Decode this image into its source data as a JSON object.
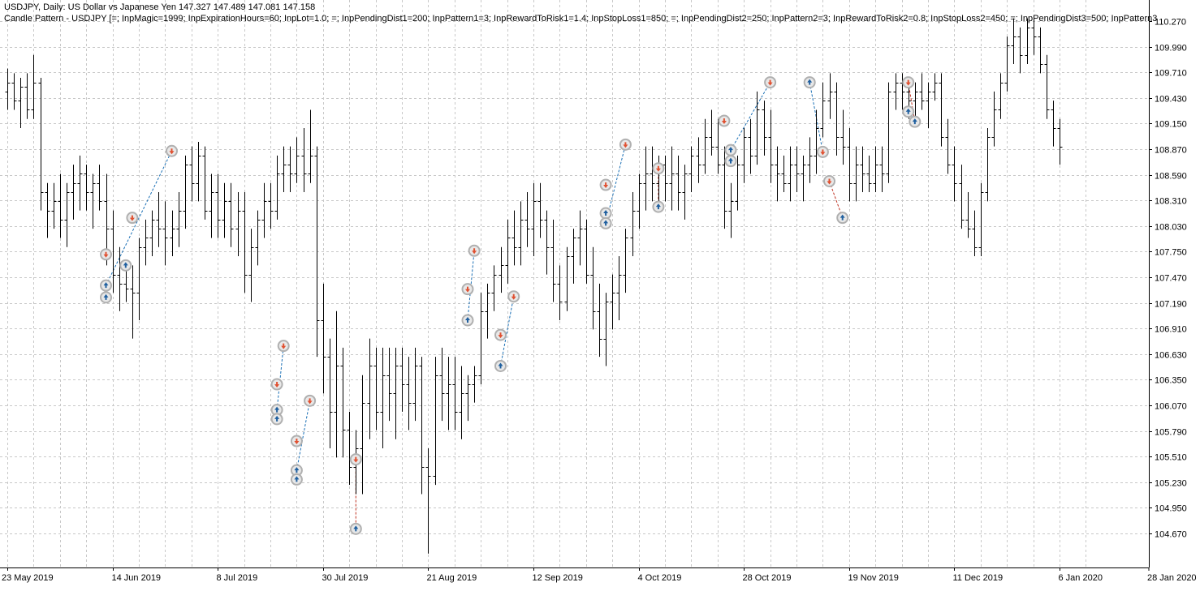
{
  "header": {
    "line1": "USDJPY, Daily:  US Dollar vs Japanese Yen  147.327 147.489 147.081 147.158",
    "line2": "Candle Pattern - USDJPY [=; InpMagic=1999; InpExpirationHours=60; InpLot=1.0; =; InpPendingDist1=200; InpPattern1=3; InpRewardToRisk1=1.4; InpStopLoss1=850; =; InpPendingDist2=250; InpPattern2=3; InpRewardToRisk2=0.8; InpStopLoss2=450; =; InpPendingDist3=500; InpPattern3"
  },
  "colors": {
    "background": "#ffffff",
    "bars": "#000000",
    "grid": "#c8c8c8",
    "buy_marker": "#1f5f9f",
    "sell_marker": "#e05030",
    "marker_ring": "#b0b0b0",
    "trade_line_buy": "#1a6fb5",
    "trade_line_sell": "#c03020"
  },
  "chart_data": {
    "type": "ohlc",
    "symbol": "USDJPY",
    "timeframe": "Daily",
    "y_ticks": [
      "110.270",
      "109.990",
      "109.710",
      "109.430",
      "109.150",
      "108.870",
      "108.590",
      "108.310",
      "108.030",
      "107.750",
      "107.470",
      "107.190",
      "106.910",
      "106.630",
      "106.350",
      "106.070",
      "105.790",
      "105.510",
      "105.230",
      "104.950",
      "104.670"
    ],
    "ylim": [
      104.4,
      110.45
    ],
    "x_ticks": [
      "23 May 2019",
      "14 Jun 2019",
      "8 Jul 2019",
      "30 Jul 2019",
      "21 Aug 2019",
      "12 Sep 2019",
      "4 Oct 2019",
      "28 Oct 2019",
      "19 Nov 2019",
      "11 Dec 2019",
      "6 Jan 2020",
      "28 Jan 2020"
    ],
    "x_tick_bar_index": [
      0,
      16,
      32,
      48,
      64,
      80,
      96,
      112,
      128,
      144,
      160,
      176
    ],
    "grid": true,
    "ohlc": [
      [
        109.5,
        109.75,
        109.3,
        109.6
      ],
      [
        109.6,
        109.7,
        109.3,
        109.4
      ],
      [
        109.4,
        109.65,
        109.1,
        109.55
      ],
      [
        109.55,
        109.7,
        109.2,
        109.3
      ],
      [
        109.3,
        109.9,
        109.2,
        109.6
      ],
      [
        109.6,
        109.65,
        108.2,
        108.4
      ],
      [
        108.4,
        108.5,
        107.9,
        108.2
      ],
      [
        108.2,
        108.5,
        108.0,
        108.3
      ],
      [
        108.3,
        108.6,
        107.9,
        108.1
      ],
      [
        108.1,
        108.5,
        107.8,
        108.4
      ],
      [
        108.4,
        108.7,
        108.1,
        108.5
      ],
      [
        108.5,
        108.8,
        108.2,
        108.6
      ],
      [
        108.6,
        108.7,
        108.2,
        108.4
      ],
      [
        108.4,
        108.6,
        108.0,
        108.5
      ],
      [
        108.5,
        108.7,
        108.2,
        108.3
      ],
      [
        108.3,
        108.6,
        107.6,
        108.0
      ],
      [
        108.0,
        108.2,
        107.3,
        107.5
      ],
      [
        107.5,
        107.8,
        107.1,
        107.4
      ],
      [
        107.4,
        107.6,
        107.2,
        107.35
      ],
      [
        107.35,
        107.6,
        106.8,
        107.3
      ],
      [
        107.3,
        107.9,
        107.0,
        107.8
      ],
      [
        107.8,
        108.1,
        107.6,
        107.9
      ],
      [
        107.9,
        108.2,
        107.7,
        108.1
      ],
      [
        108.1,
        108.4,
        107.8,
        108.0
      ],
      [
        108.0,
        108.3,
        107.6,
        107.9
      ],
      [
        107.9,
        108.2,
        107.7,
        108.0
      ],
      [
        108.0,
        108.4,
        107.8,
        108.2
      ],
      [
        108.2,
        108.8,
        108.0,
        108.7
      ],
      [
        108.7,
        108.9,
        108.3,
        108.5
      ],
      [
        108.5,
        108.95,
        108.3,
        108.8
      ],
      [
        108.8,
        108.9,
        108.1,
        108.2
      ],
      [
        108.2,
        108.6,
        107.9,
        108.4
      ],
      [
        108.4,
        108.6,
        107.9,
        108.1
      ],
      [
        108.1,
        108.5,
        107.9,
        108.3
      ],
      [
        108.3,
        108.5,
        107.8,
        108.0
      ],
      [
        108.0,
        108.4,
        107.7,
        108.2
      ],
      [
        108.2,
        108.4,
        107.3,
        107.5
      ],
      [
        107.5,
        108.0,
        107.2,
        107.8
      ],
      [
        107.8,
        108.2,
        107.6,
        108.1
      ],
      [
        108.1,
        108.5,
        107.9,
        108.3
      ],
      [
        108.3,
        108.5,
        108.0,
        108.2
      ],
      [
        108.2,
        108.8,
        108.1,
        108.6
      ],
      [
        108.6,
        108.9,
        108.4,
        108.7
      ],
      [
        108.7,
        108.9,
        108.4,
        108.6
      ],
      [
        108.6,
        109.0,
        108.5,
        108.8
      ],
      [
        108.8,
        109.1,
        108.4,
        108.6
      ],
      [
        108.6,
        109.3,
        108.5,
        108.8
      ],
      [
        108.8,
        108.9,
        106.6,
        107.0
      ],
      [
        107.0,
        107.4,
        106.2,
        106.6
      ],
      [
        106.6,
        106.8,
        105.6,
        106.0
      ],
      [
        106.0,
        107.1,
        105.5,
        106.5
      ],
      [
        106.5,
        106.7,
        105.5,
        105.8
      ],
      [
        105.8,
        106.0,
        105.2,
        105.4
      ],
      [
        105.4,
        105.8,
        105.1,
        105.6
      ],
      [
        105.6,
        106.4,
        105.1,
        106.1
      ],
      [
        106.1,
        106.8,
        105.7,
        106.5
      ],
      [
        106.5,
        106.7,
        105.8,
        106.0
      ],
      [
        106.0,
        106.7,
        105.6,
        106.4
      ],
      [
        106.4,
        106.7,
        105.9,
        106.2
      ],
      [
        106.2,
        106.7,
        105.7,
        106.5
      ],
      [
        106.5,
        106.7,
        106.0,
        106.3
      ],
      [
        106.3,
        106.6,
        105.8,
        106.1
      ],
      [
        106.1,
        106.7,
        105.9,
        106.5
      ],
      [
        106.5,
        106.6,
        105.1,
        105.4
      ],
      [
        105.4,
        105.6,
        104.45,
        105.3
      ],
      [
        105.3,
        106.6,
        105.2,
        106.4
      ],
      [
        106.4,
        106.7,
        105.9,
        106.2
      ],
      [
        106.2,
        106.6,
        105.8,
        106.3
      ],
      [
        106.3,
        106.6,
        105.8,
        106.0
      ],
      [
        106.0,
        106.5,
        105.7,
        106.2
      ],
      [
        106.2,
        106.4,
        105.9,
        106.3
      ],
      [
        106.3,
        106.5,
        106.1,
        106.4
      ],
      [
        106.4,
        107.3,
        106.3,
        107.1
      ],
      [
        107.1,
        107.4,
        106.8,
        107.3
      ],
      [
        107.3,
        107.6,
        107.1,
        107.5
      ],
      [
        107.5,
        107.8,
        107.3,
        107.6
      ],
      [
        107.6,
        108.1,
        107.4,
        107.9
      ],
      [
        107.9,
        108.2,
        107.6,
        107.8
      ],
      [
        107.8,
        108.3,
        107.6,
        108.1
      ],
      [
        108.1,
        108.4,
        107.8,
        108.0
      ],
      [
        108.0,
        108.5,
        107.7,
        108.3
      ],
      [
        108.3,
        108.5,
        107.9,
        108.1
      ],
      [
        108.1,
        108.2,
        107.5,
        107.8
      ],
      [
        107.8,
        108.1,
        107.2,
        107.4
      ],
      [
        107.4,
        107.6,
        107.0,
        107.2
      ],
      [
        107.2,
        107.8,
        107.1,
        107.7
      ],
      [
        107.7,
        108.0,
        107.4,
        107.9
      ],
      [
        107.9,
        108.2,
        107.6,
        108.0
      ],
      [
        108.0,
        108.1,
        107.4,
        107.5
      ],
      [
        107.5,
        107.8,
        106.9,
        107.1
      ],
      [
        107.1,
        107.4,
        106.6,
        106.8
      ],
      [
        106.8,
        107.3,
        106.5,
        107.2
      ],
      [
        107.2,
        107.5,
        106.9,
        107.3
      ],
      [
        107.3,
        107.7,
        107.0,
        107.5
      ],
      [
        107.5,
        108.0,
        107.3,
        107.9
      ],
      [
        107.9,
        108.4,
        107.7,
        108.2
      ],
      [
        108.2,
        108.6,
        108.0,
        108.5
      ],
      [
        108.5,
        108.9,
        108.2,
        108.6
      ],
      [
        108.6,
        108.9,
        108.3,
        108.5
      ],
      [
        108.5,
        108.8,
        108.2,
        108.7
      ],
      [
        108.7,
        108.8,
        108.3,
        108.5
      ],
      [
        108.5,
        108.9,
        108.2,
        108.6
      ],
      [
        108.6,
        108.8,
        108.2,
        108.4
      ],
      [
        108.4,
        108.7,
        108.1,
        108.6
      ],
      [
        108.6,
        108.9,
        108.4,
        108.8
      ],
      [
        108.8,
        109.0,
        108.5,
        108.7
      ],
      [
        108.7,
        109.2,
        108.6,
        109.0
      ],
      [
        109.0,
        109.3,
        108.8,
        108.9
      ],
      [
        108.9,
        109.2,
        108.6,
        108.7
      ],
      [
        108.7,
        108.9,
        108.0,
        108.2
      ],
      [
        108.2,
        108.5,
        107.9,
        108.3
      ],
      [
        108.3,
        108.8,
        108.2,
        108.7
      ],
      [
        108.7,
        109.1,
        108.5,
        109.0
      ],
      [
        109.0,
        109.2,
        108.6,
        108.8
      ],
      [
        108.8,
        109.5,
        108.7,
        109.3
      ],
      [
        109.3,
        109.4,
        108.8,
        109.0
      ],
      [
        109.0,
        109.3,
        108.5,
        108.7
      ],
      [
        108.7,
        108.9,
        108.3,
        108.6
      ],
      [
        108.6,
        108.8,
        108.4,
        108.5
      ],
      [
        108.5,
        108.9,
        108.3,
        108.7
      ],
      [
        108.7,
        108.9,
        108.4,
        108.6
      ],
      [
        108.6,
        108.8,
        108.3,
        108.7
      ],
      [
        108.7,
        109.0,
        108.5,
        108.8
      ],
      [
        108.8,
        109.3,
        108.6,
        109.1
      ],
      [
        109.1,
        109.6,
        109.0,
        109.4
      ],
      [
        109.4,
        109.7,
        109.2,
        109.5
      ],
      [
        109.5,
        109.6,
        108.8,
        109.0
      ],
      [
        109.0,
        109.3,
        108.7,
        108.9
      ],
      [
        108.9,
        109.1,
        108.3,
        108.5
      ],
      [
        108.5,
        108.9,
        108.3,
        108.7
      ],
      [
        108.7,
        108.9,
        108.4,
        108.6
      ],
      [
        108.6,
        108.8,
        108.4,
        108.5
      ],
      [
        108.5,
        108.9,
        108.4,
        108.7
      ],
      [
        108.7,
        108.9,
        108.4,
        108.6
      ],
      [
        108.6,
        109.6,
        108.5,
        109.5
      ],
      [
        109.5,
        109.7,
        109.3,
        109.6
      ],
      [
        109.6,
        109.7,
        109.3,
        109.5
      ],
      [
        109.5,
        109.6,
        109.2,
        109.4
      ],
      [
        109.4,
        109.6,
        109.2,
        109.5
      ],
      [
        109.5,
        109.7,
        109.3,
        109.4
      ],
      [
        109.4,
        109.6,
        109.1,
        109.5
      ],
      [
        109.5,
        109.7,
        109.4,
        109.6
      ],
      [
        109.6,
        109.7,
        108.9,
        109.0
      ],
      [
        109.0,
        109.2,
        108.6,
        108.7
      ],
      [
        108.7,
        108.9,
        108.3,
        108.5
      ],
      [
        108.5,
        108.7,
        108.0,
        108.1
      ],
      [
        108.1,
        108.4,
        107.9,
        108.0
      ],
      [
        108.0,
        108.2,
        107.7,
        107.8
      ],
      [
        107.8,
        108.5,
        107.7,
        108.4
      ],
      [
        108.4,
        109.1,
        108.3,
        109.0
      ],
      [
        109.0,
        109.5,
        108.9,
        109.3
      ],
      [
        109.3,
        109.7,
        109.2,
        109.6
      ],
      [
        109.6,
        110.1,
        109.5,
        110.0
      ],
      [
        110.0,
        110.3,
        109.8,
        110.1
      ],
      [
        110.1,
        110.2,
        109.7,
        109.9
      ],
      [
        109.9,
        110.3,
        109.8,
        110.2
      ],
      [
        110.2,
        110.3,
        109.9,
        110.1
      ],
      [
        110.1,
        110.2,
        109.7,
        109.8
      ],
      [
        109.8,
        109.9,
        109.2,
        109.3
      ],
      [
        109.3,
        109.4,
        108.9,
        109.1
      ],
      [
        109.1,
        109.2,
        108.7,
        108.9
      ]
    ],
    "trade_markers": [
      {
        "bar": 15,
        "price": 107.72,
        "side": "sell"
      },
      {
        "bar": 15,
        "price": 107.38,
        "side": "buy"
      },
      {
        "bar": 15,
        "price": 107.25,
        "side": "buy"
      },
      {
        "bar": 18,
        "price": 107.6,
        "side": "buy"
      },
      {
        "bar": 19,
        "price": 108.12,
        "side": "sell"
      },
      {
        "bar": 25,
        "price": 108.85,
        "side": "sell"
      },
      {
        "bar": 41,
        "price": 106.3,
        "side": "sell"
      },
      {
        "bar": 41,
        "price": 106.02,
        "side": "buy"
      },
      {
        "bar": 41,
        "price": 105.92,
        "side": "buy"
      },
      {
        "bar": 42,
        "price": 106.72,
        "side": "sell"
      },
      {
        "bar": 44,
        "price": 105.68,
        "side": "sell"
      },
      {
        "bar": 44,
        "price": 105.36,
        "side": "buy"
      },
      {
        "bar": 44,
        "price": 105.26,
        "side": "buy"
      },
      {
        "bar": 46,
        "price": 106.12,
        "side": "sell"
      },
      {
        "bar": 53,
        "price": 105.48,
        "side": "sell"
      },
      {
        "bar": 53,
        "price": 104.72,
        "side": "buy"
      },
      {
        "bar": 70,
        "price": 107.34,
        "side": "sell"
      },
      {
        "bar": 70,
        "price": 107.0,
        "side": "buy"
      },
      {
        "bar": 71,
        "price": 107.76,
        "side": "sell"
      },
      {
        "bar": 75,
        "price": 106.84,
        "side": "sell"
      },
      {
        "bar": 75,
        "price": 106.5,
        "side": "buy"
      },
      {
        "bar": 77,
        "price": 107.26,
        "side": "sell"
      },
      {
        "bar": 91,
        "price": 108.48,
        "side": "sell"
      },
      {
        "bar": 91,
        "price": 108.17,
        "side": "buy"
      },
      {
        "bar": 91,
        "price": 108.06,
        "side": "buy"
      },
      {
        "bar": 94,
        "price": 108.92,
        "side": "sell"
      },
      {
        "bar": 99,
        "price": 108.66,
        "side": "sell"
      },
      {
        "bar": 99,
        "price": 108.24,
        "side": "buy"
      },
      {
        "bar": 109,
        "price": 109.18,
        "side": "sell"
      },
      {
        "bar": 110,
        "price": 108.86,
        "side": "buy"
      },
      {
        "bar": 110,
        "price": 108.74,
        "side": "buy"
      },
      {
        "bar": 116,
        "price": 109.6,
        "side": "sell"
      },
      {
        "bar": 122,
        "price": 109.6,
        "side": "buy"
      },
      {
        "bar": 124,
        "price": 108.84,
        "side": "sell"
      },
      {
        "bar": 125,
        "price": 108.52,
        "side": "sell"
      },
      {
        "bar": 127,
        "price": 108.12,
        "side": "buy"
      },
      {
        "bar": 137,
        "price": 109.6,
        "side": "sell"
      },
      {
        "bar": 137,
        "price": 109.28,
        "side": "buy"
      },
      {
        "bar": 138,
        "price": 109.17,
        "side": "buy"
      }
    ],
    "trade_lines": [
      {
        "from": [
          15,
          107.38
        ],
        "to": [
          25,
          108.85
        ],
        "side": "buy"
      },
      {
        "from": [
          41,
          106.02
        ],
        "to": [
          42,
          106.72
        ],
        "side": "buy"
      },
      {
        "from": [
          44,
          105.36
        ],
        "to": [
          46,
          106.12
        ],
        "side": "buy"
      },
      {
        "from": [
          53,
          105.48
        ],
        "to": [
          53,
          104.72
        ],
        "side": "sell"
      },
      {
        "from": [
          70,
          107.0
        ],
        "to": [
          71,
          107.76
        ],
        "side": "buy"
      },
      {
        "from": [
          75,
          106.5
        ],
        "to": [
          77,
          107.26
        ],
        "side": "buy"
      },
      {
        "from": [
          91,
          108.06
        ],
        "to": [
          94,
          108.92
        ],
        "side": "buy"
      },
      {
        "from": [
          99,
          108.66
        ],
        "to": [
          99,
          108.24
        ],
        "side": "sell"
      },
      {
        "from": [
          110,
          108.86
        ],
        "to": [
          116,
          109.6
        ],
        "side": "buy"
      },
      {
        "from": [
          122,
          109.6
        ],
        "to": [
          124,
          108.84
        ],
        "side": "buy"
      },
      {
        "from": [
          125,
          108.52
        ],
        "to": [
          127,
          108.12
        ],
        "side": "sell"
      },
      {
        "from": [
          137,
          109.6
        ],
        "to": [
          138,
          109.17
        ],
        "side": "sell"
      }
    ]
  }
}
